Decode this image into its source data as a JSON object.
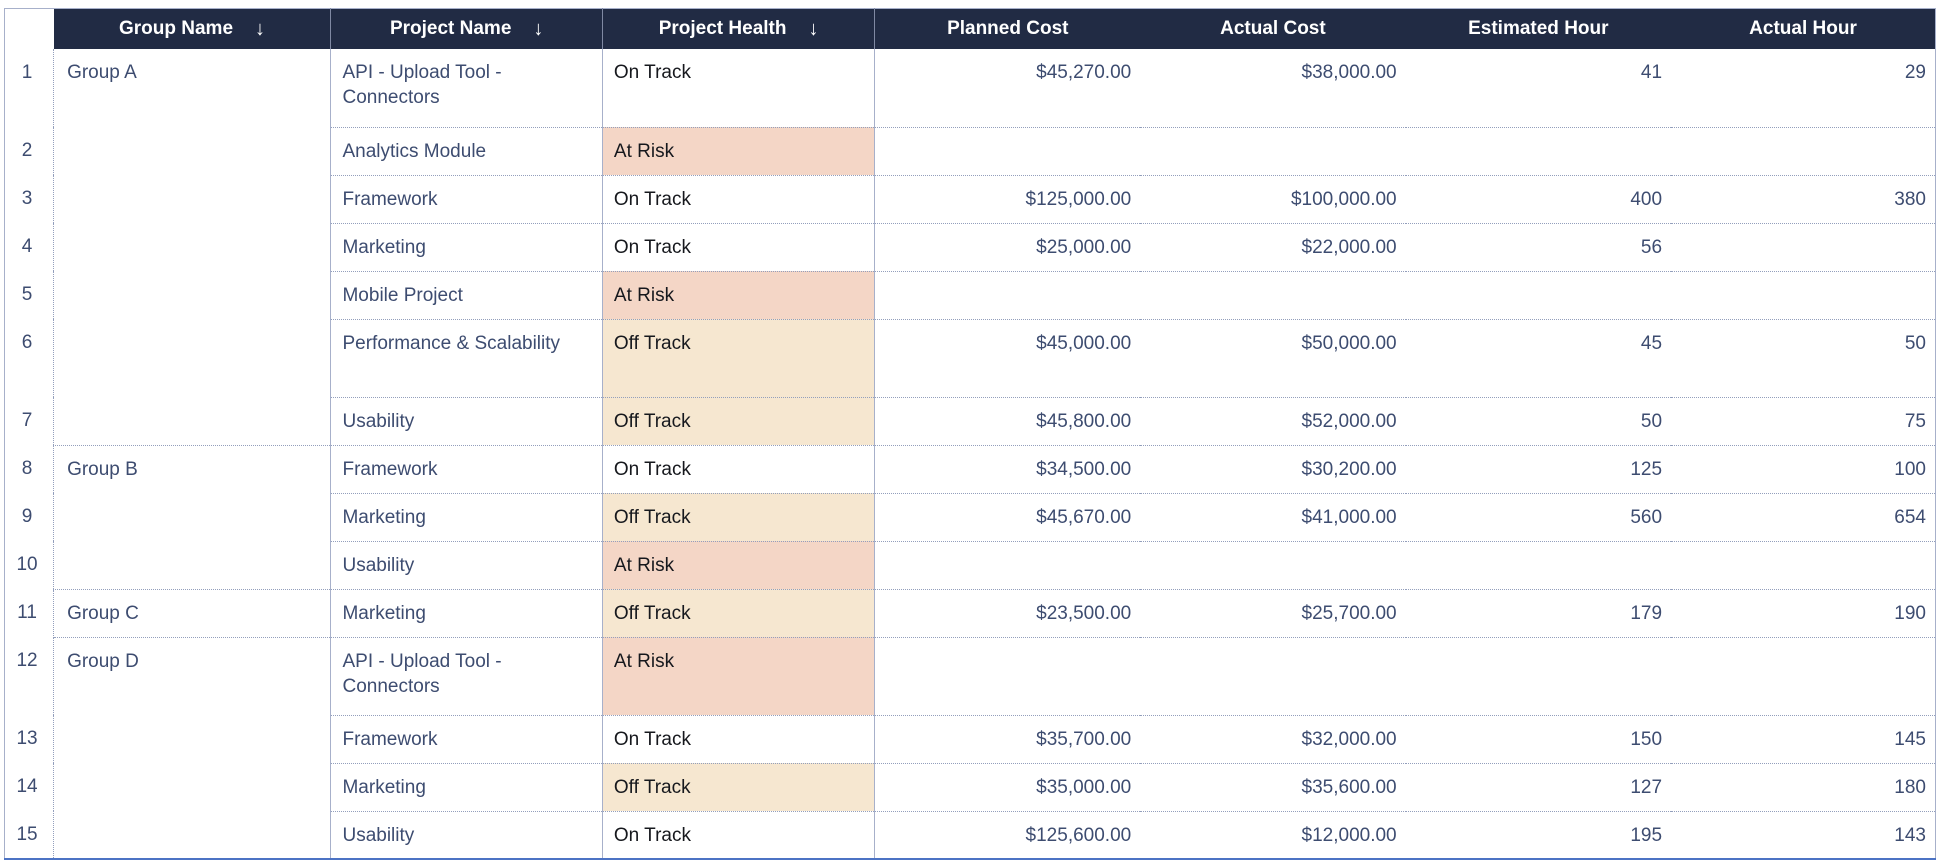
{
  "sort_icon": "↓",
  "columns": [
    {
      "key": "group",
      "label": "Group Name",
      "sorted": "desc"
    },
    {
      "key": "project",
      "label": "Project Name",
      "sorted": "desc"
    },
    {
      "key": "health",
      "label": "Project Health",
      "sorted": "desc"
    },
    {
      "key": "planned_cost",
      "label": "Planned Cost"
    },
    {
      "key": "actual_cost",
      "label": "Actual Cost"
    },
    {
      "key": "estimated_hour",
      "label": "Estimated Hour"
    },
    {
      "key": "actual_hour",
      "label": "Actual Hour"
    }
  ],
  "rows": [
    {
      "num": "1",
      "group": "Group A",
      "group_rows": 7,
      "project": "API - Upload Tool - Connectors",
      "health": "On Track",
      "planned_cost": "$45,270.00",
      "actual_cost": "$38,000.00",
      "estimated_hour": "41",
      "actual_hour": "29",
      "tall": true
    },
    {
      "num": "2",
      "project": "Analytics Module",
      "health": "At Risk",
      "planned_cost": "",
      "actual_cost": "",
      "estimated_hour": "",
      "actual_hour": ""
    },
    {
      "num": "3",
      "project": "Framework",
      "health": "On Track",
      "planned_cost": "$125,000.00",
      "actual_cost": "$100,000.00",
      "estimated_hour": "400",
      "actual_hour": "380"
    },
    {
      "num": "4",
      "project": "Marketing",
      "health": "On Track",
      "planned_cost": "$25,000.00",
      "actual_cost": "$22,000.00",
      "estimated_hour": "56",
      "actual_hour": ""
    },
    {
      "num": "5",
      "project": "Mobile Project",
      "health": "At Risk",
      "planned_cost": "",
      "actual_cost": "",
      "estimated_hour": "",
      "actual_hour": ""
    },
    {
      "num": "6",
      "project": "Performance & Scalability",
      "health": "Off Track",
      "planned_cost": "$45,000.00",
      "actual_cost": "$50,000.00",
      "estimated_hour": "45",
      "actual_hour": "50",
      "tall": true
    },
    {
      "num": "7",
      "project": "Usability",
      "health": "Off Track",
      "planned_cost": "$45,800.00",
      "actual_cost": "$52,000.00",
      "estimated_hour": "50",
      "actual_hour": "75"
    },
    {
      "num": "8",
      "group": "Group B",
      "group_rows": 3,
      "project": "Framework",
      "health": "On Track",
      "planned_cost": "$34,500.00",
      "actual_cost": "$30,200.00",
      "estimated_hour": "125",
      "actual_hour": "100"
    },
    {
      "num": "9",
      "project": "Marketing",
      "health": "Off Track",
      "planned_cost": "$45,670.00",
      "actual_cost": "$41,000.00",
      "estimated_hour": "560",
      "actual_hour": "654"
    },
    {
      "num": "10",
      "project": "Usability",
      "health": "At Risk",
      "planned_cost": "",
      "actual_cost": "",
      "estimated_hour": "",
      "actual_hour": ""
    },
    {
      "num": "11",
      "group": "Group C",
      "group_rows": 1,
      "project": "Marketing",
      "health": "Off Track",
      "planned_cost": "$23,500.00",
      "actual_cost": "$25,700.00",
      "estimated_hour": "179",
      "actual_hour": "190"
    },
    {
      "num": "12",
      "group": "Group D",
      "group_rows": 4,
      "project": "API - Upload Tool - Connectors",
      "health": "At Risk",
      "planned_cost": "",
      "actual_cost": "",
      "estimated_hour": "",
      "actual_hour": "",
      "tall": true
    },
    {
      "num": "13",
      "project": "Framework",
      "health": "On Track",
      "planned_cost": "$35,700.00",
      "actual_cost": "$32,000.00",
      "estimated_hour": "150",
      "actual_hour": "145"
    },
    {
      "num": "14",
      "project": "Marketing",
      "health": "Off Track",
      "planned_cost": "$35,000.00",
      "actual_cost": "$35,600.00",
      "estimated_hour": "127",
      "actual_hour": "180"
    },
    {
      "num": "15",
      "project": "Usability",
      "health": "On Track",
      "planned_cost": "$125,600.00",
      "actual_cost": "$12,000.00",
      "estimated_hour": "195",
      "actual_hour": "143"
    }
  ],
  "colors": {
    "header_bg": "#212b44",
    "header_text": "#ffffff",
    "header_divider": "#8089a3",
    "text_navy": "#3d4c70",
    "health_text": "#16181d",
    "at_risk_bg": "#f4d6c6",
    "off_track_bg": "#f6e7d0",
    "on_track_bg": "#ffffff",
    "grid_solid": "#a7b0ca",
    "grid_dotted": "#939fbc",
    "bottom_edge": "#4c73c4"
  }
}
